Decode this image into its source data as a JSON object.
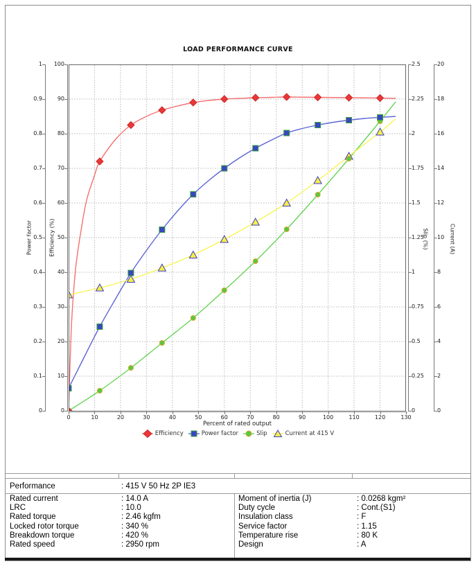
{
  "chart_data": {
    "type": "line",
    "title": "LOAD PERFORMANCE CURVE",
    "xlabel": "Percent of rated output",
    "x_range": [
      0,
      130
    ],
    "x_tick_labels": [
      "0",
      "10",
      "20",
      "30",
      "40",
      "50",
      "60",
      "70",
      "80",
      "90",
      "100",
      "110",
      "120",
      "130"
    ],
    "grid": true,
    "legend_position": "bottom",
    "axes": [
      {
        "id": "power_factor",
        "label": "Power factor",
        "side": "left",
        "range": [
          0,
          1
        ],
        "tick_labels": [
          "0",
          "0.1",
          "0.2",
          "0.3",
          "0.4",
          "0.5",
          "0.6",
          "0.7",
          "0.8",
          "0.9",
          "1"
        ]
      },
      {
        "id": "efficiency",
        "label": "Efficiency (%)",
        "side": "left",
        "range": [
          0,
          100
        ],
        "tick_labels": [
          "0",
          "10",
          "20",
          "30",
          "40",
          "50",
          "60",
          "70",
          "80",
          "90",
          "100"
        ]
      },
      {
        "id": "slip",
        "label": "Slip (%)",
        "side": "right",
        "range": [
          0,
          2.5
        ],
        "tick_labels": [
          "0",
          "0.25",
          "0.5",
          "0.75",
          "1",
          "1.25",
          "1.5",
          "1.75",
          "2",
          "2.25",
          "2.5"
        ]
      },
      {
        "id": "current",
        "label": "Current (A)",
        "side": "right",
        "range": [
          0,
          20
        ],
        "tick_labels": [
          "0",
          "2",
          "4",
          "6",
          "8",
          "10",
          "12",
          "14",
          "16",
          "18",
          "20"
        ]
      }
    ],
    "x": [
      0,
      12,
      24,
      36,
      48,
      60,
      72,
      84,
      96,
      108,
      120
    ],
    "series": [
      {
        "name": "Efficiency",
        "axis": "efficiency",
        "marker": "diamond",
        "marker_fill": "#ee3637",
        "marker_stroke": "#c62b2b",
        "line_color": "#f47070",
        "values": [
          0,
          72,
          82.5,
          86.8,
          89,
          90,
          90.4,
          90.6,
          90.5,
          90.4,
          90.3
        ],
        "fit_x": [
          0,
          1,
          2,
          3,
          5,
          7,
          10,
          12,
          18,
          24,
          30,
          36,
          42,
          48,
          54,
          60,
          66,
          72,
          78,
          84,
          90,
          96,
          102,
          108,
          114,
          120,
          126
        ],
        "fit_v": [
          0,
          23,
          35,
          43,
          53,
          61,
          68,
          72,
          78.3,
          82.5,
          85,
          86.8,
          88,
          89,
          89.6,
          90,
          90.2,
          90.4,
          90.5,
          90.6,
          90.55,
          90.5,
          90.45,
          90.4,
          90.35,
          90.3,
          90.2
        ]
      },
      {
        "name": "Power factor",
        "axis": "power_factor",
        "marker": "square",
        "marker_fill": "#3847bf",
        "marker_stroke": "#3ba23b",
        "line_color": "#5b64d4",
        "values": [
          0.065,
          0.243,
          0.398,
          0.523,
          0.625,
          0.7,
          0.758,
          0.802,
          0.825,
          0.839,
          0.847
        ],
        "fit_x": [
          0,
          6,
          12,
          18,
          24,
          30,
          36,
          42,
          48,
          54,
          60,
          66,
          72,
          78,
          84,
          90,
          96,
          102,
          108,
          114,
          120,
          126
        ],
        "fit_v": [
          0.065,
          0.155,
          0.243,
          0.322,
          0.398,
          0.463,
          0.523,
          0.577,
          0.625,
          0.665,
          0.7,
          0.731,
          0.758,
          0.781,
          0.802,
          0.815,
          0.825,
          0.833,
          0.839,
          0.844,
          0.847,
          0.85
        ]
      },
      {
        "name": "Slip",
        "axis": "slip",
        "marker": "circle",
        "marker_fill": "#52cb40",
        "marker_stroke": "#e0a22e",
        "line_color": "#67d455",
        "values": [
          0,
          0.145,
          0.31,
          0.49,
          0.67,
          0.87,
          1.08,
          1.31,
          1.56,
          1.82,
          2.09
        ],
        "fit_x": [
          0,
          12,
          24,
          36,
          48,
          60,
          72,
          84,
          96,
          108,
          120,
          126
        ],
        "fit_v": [
          0,
          0.145,
          0.31,
          0.49,
          0.67,
          0.87,
          1.08,
          1.31,
          1.56,
          1.82,
          2.09,
          2.23
        ]
      },
      {
        "name": "Current at 415 V",
        "axis": "current",
        "marker": "triangle",
        "marker_fill": "#f6ee48",
        "marker_stroke": "#3c3cc4",
        "line_color": "#f9f455",
        "values": [
          6.7,
          7.1,
          7.6,
          8.25,
          9.0,
          9.9,
          10.9,
          12.0,
          13.3,
          14.7,
          16.1
        ],
        "fit_x": [
          0,
          12,
          24,
          36,
          48,
          60,
          72,
          84,
          96,
          108,
          120,
          126
        ],
        "fit_v": [
          6.7,
          7.1,
          7.6,
          8.25,
          9.0,
          9.9,
          10.9,
          12.0,
          13.3,
          14.7,
          16.1,
          16.85
        ]
      }
    ]
  },
  "table": {
    "header": {
      "label": "Performance",
      "value": ": 415 V 50 Hz 2P IE3"
    },
    "left_rows": [
      {
        "label": "Rated current",
        "value": ": 14.0 A"
      },
      {
        "label": "LRC",
        "value": ": 10.0"
      },
      {
        "label": "Rated torque",
        "value": ": 2.46 kgfm"
      },
      {
        "label": "Locked rotor torque",
        "value": ": 340 %"
      },
      {
        "label": "Breakdown torque",
        "value": ": 420 %"
      },
      {
        "label": "Rated speed",
        "value": ": 2950 rpm"
      }
    ],
    "right_rows": [
      {
        "label": "Moment of inertia (J)",
        "value": ": 0.0268 kgm²"
      },
      {
        "label": "Duty cycle",
        "value": ": Cont.(S1)"
      },
      {
        "label": "Insulation class",
        "value": ": F"
      },
      {
        "label": "Service factor",
        "value": ": 1.15"
      },
      {
        "label": "Temperature rise",
        "value": ": 80 K"
      },
      {
        "label": "Design",
        "value": ": A"
      }
    ]
  }
}
